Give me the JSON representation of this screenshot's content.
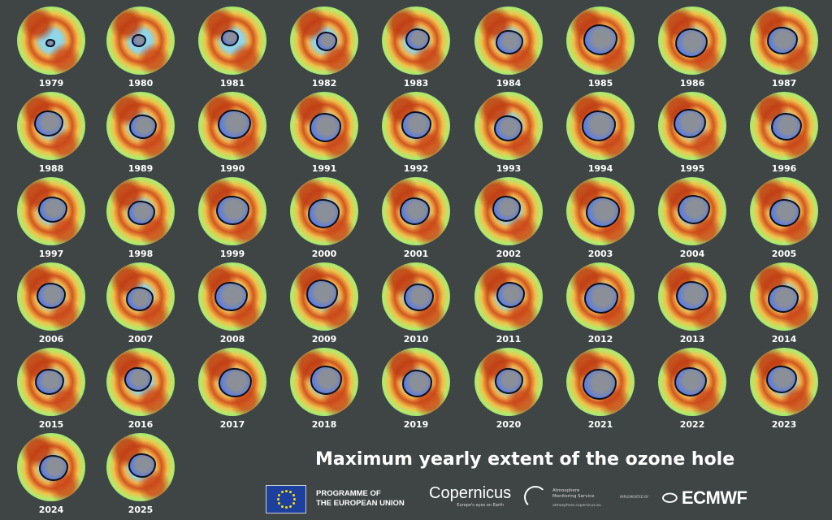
{
  "title": "Maximum yearly extent of the ozone hole",
  "years": [
    "1979",
    "1980",
    "1981",
    "1982",
    "1983",
    "1984",
    "1985",
    "1986",
    "1987",
    "1988",
    "1989",
    "1990",
    "1991",
    "1992",
    "1993",
    "1994",
    "1995",
    "1996",
    "1997",
    "1998",
    "1999",
    "2000",
    "2001",
    "2002",
    "2003",
    "2004",
    "2005",
    "2006",
    "2007",
    "2008",
    "2009",
    "2010",
    "2011",
    "2012",
    "2013",
    "2014",
    "2015",
    "2016",
    "2017",
    "2018",
    "2019",
    "2020",
    "2021",
    "2022",
    "2023",
    "2024",
    "2025"
  ],
  "colors": {
    "background": "#3f4444",
    "hole_outline": "#0b0f18",
    "hole_fill": "#5d7de0"
  },
  "footer": {
    "eu_text_1": "PROGRAMME OF",
    "eu_text_2": "THE EUROPEAN UNION",
    "copernicus": "Copernicus",
    "copernicus_tagline": "Europe's eyes on Earth",
    "cams_line1": "Atmosphere",
    "cams_line2": "Monitoring Service",
    "cams_url": "atmosphere.copernicus.eu",
    "implemented_by": "IMPLEMENTED BY",
    "ecmwf": "ECMWF"
  }
}
